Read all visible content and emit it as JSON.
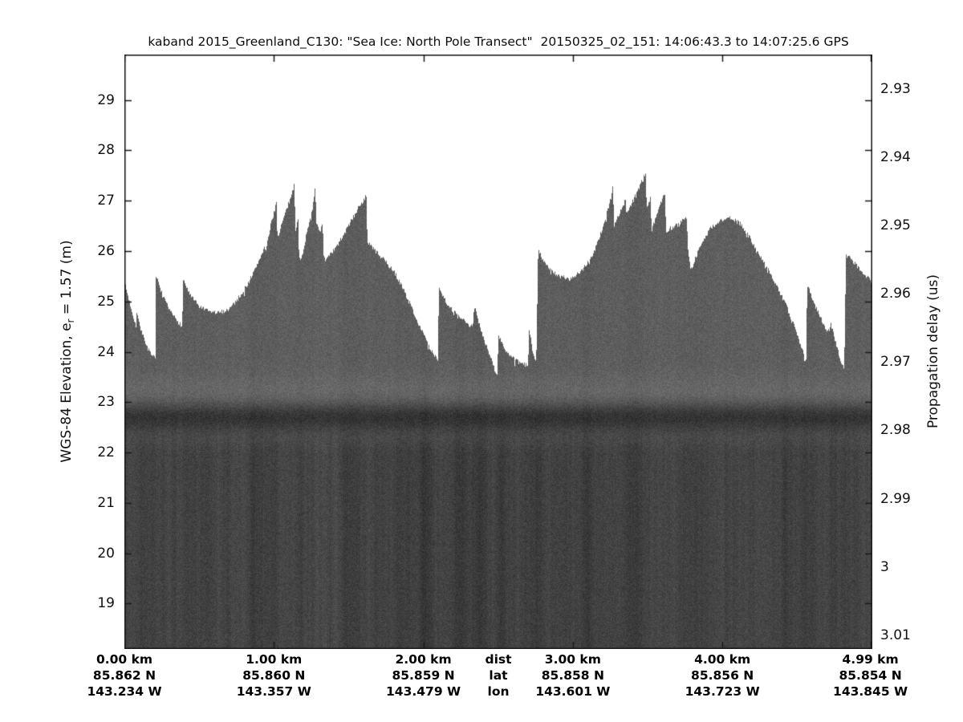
{
  "title": "kaband 2015_Greenland_C130: \"Sea Ice: North Pole Transect\"  20150325_02_151: 14:06:43.3 to 14:07:25.6 GPS",
  "colors": {
    "background": "#ffffff",
    "ink": "#000000",
    "ice_body_gray": "#5e5e5e",
    "bright_zone_gray": "#696969",
    "interface_band_gray": "#303030",
    "deep_gray": "#434343"
  },
  "axes": {
    "left": {
      "label_prefix": "WGS-84 Elevation, e",
      "label_sub": "r",
      "label_suffix": " = 1.57 (m)"
    },
    "right": {
      "label": "Propagation delay (us)"
    },
    "bottom": {
      "legend": {
        "dist": "dist",
        "lat": "lat",
        "lon": "lon"
      }
    }
  },
  "chart_data": {
    "type": "heatmap",
    "title": "kaband 2015_Greenland_C130: \"Sea Ice: North Pole Transect\"  20150325_02_151: 14:06:43.3 to 14:07:25.6 GPS",
    "description": "Ka-band radar altimeter echogram over sea ice; white above the jagged snow/ice surface return, speckled gray echo below, a dark horizontal interface band near 22.7 m elevation, darker noisy returns beneath extending to the bottom of the plot.",
    "ylabel_left": "WGS-84 Elevation, e_r = 1.57 (m)",
    "ylabel_right": "Propagation delay (us)",
    "xlabel_rows": [
      "dist",
      "lat",
      "lon"
    ],
    "x_range_km": [
      0.0,
      5.003
    ],
    "elevation_range_m": [
      18.1,
      29.9
    ],
    "delay_range_us": [
      2.925,
      3.012
    ],
    "elevation_ticks_m": [
      "29",
      "28",
      "27",
      "26",
      "25",
      "24",
      "23",
      "22",
      "21",
      "20",
      "19"
    ],
    "delay_ticks_us": [
      "2.93",
      "2.94",
      "2.95",
      "2.96",
      "2.97",
      "2.98",
      "2.99",
      "3",
      "3.01"
    ],
    "x_ticks": [
      {
        "km": 0.0,
        "dist": "0.00 km",
        "lat": "85.862 N",
        "lon": "143.234 W"
      },
      {
        "km": 1.0,
        "dist": "1.00 km",
        "lat": "85.860 N",
        "lon": "143.357 W"
      },
      {
        "km": 2.0,
        "dist": "2.00 km",
        "lat": "85.859 N",
        "lon": "143.479 W"
      },
      {
        "km": 3.0,
        "dist": "3.00 km",
        "lat": "85.858 N",
        "lon": "143.601 W"
      },
      {
        "km": 4.0,
        "dist": "4.00 km",
        "lat": "85.856 N",
        "lon": "143.723 W"
      },
      {
        "km": 4.99,
        "dist": "4.99 km",
        "lat": "85.854 N",
        "lon": "143.845 W"
      }
    ],
    "surface_profile": [
      [
        0.0,
        25.38
      ],
      [
        0.025,
        25.1
      ],
      [
        0.06,
        24.7
      ],
      [
        0.078,
        24.52
      ],
      [
        0.082,
        24.78
      ],
      [
        0.12,
        24.35
      ],
      [
        0.16,
        24.05
      ],
      [
        0.188,
        23.88
      ],
      [
        0.208,
        23.92
      ],
      [
        0.212,
        25.5
      ],
      [
        0.26,
        25.08
      ],
      [
        0.31,
        24.78
      ],
      [
        0.374,
        24.55
      ],
      [
        0.388,
        24.5
      ],
      [
        0.392,
        25.45
      ],
      [
        0.44,
        25.12
      ],
      [
        0.5,
        24.9
      ],
      [
        0.56,
        24.8
      ],
      [
        0.634,
        24.77
      ],
      [
        0.7,
        24.85
      ],
      [
        0.76,
        25.05
      ],
      [
        0.82,
        25.32
      ],
      [
        0.87,
        25.6
      ],
      [
        0.91,
        25.88
      ],
      [
        0.94,
        26.1
      ],
      [
        0.945,
        25.95
      ],
      [
        0.975,
        26.45
      ],
      [
        1.0,
        26.75
      ],
      [
        1.018,
        26.98
      ],
      [
        1.024,
        26.25
      ],
      [
        1.06,
        26.6
      ],
      [
        1.1,
        26.95
      ],
      [
        1.138,
        27.32
      ],
      [
        1.144,
        26.42
      ],
      [
        1.162,
        26.64
      ],
      [
        1.168,
        25.95
      ],
      [
        1.18,
        25.78
      ],
      [
        1.22,
        26.35
      ],
      [
        1.262,
        26.9
      ],
      [
        1.278,
        27.27
      ],
      [
        1.284,
        26.52
      ],
      [
        1.31,
        26.4
      ],
      [
        1.326,
        26.56
      ],
      [
        1.332,
        25.98
      ],
      [
        1.345,
        25.8
      ],
      [
        1.42,
        26.08
      ],
      [
        1.5,
        26.5
      ],
      [
        1.57,
        26.88
      ],
      [
        1.618,
        27.09
      ],
      [
        1.626,
        26.19
      ],
      [
        1.7,
        25.93
      ],
      [
        1.76,
        25.75
      ],
      [
        1.81,
        25.56
      ],
      [
        1.87,
        25.22
      ],
      [
        1.93,
        24.82
      ],
      [
        1.99,
        24.42
      ],
      [
        2.05,
        24.02
      ],
      [
        2.098,
        23.86
      ],
      [
        2.104,
        25.28
      ],
      [
        2.16,
        24.95
      ],
      [
        2.23,
        24.7
      ],
      [
        2.3,
        24.55
      ],
      [
        2.33,
        24.48
      ],
      [
        2.342,
        24.9
      ],
      [
        2.4,
        24.3
      ],
      [
        2.46,
        23.8
      ],
      [
        2.495,
        23.5
      ],
      [
        2.502,
        24.32
      ],
      [
        2.56,
        23.98
      ],
      [
        2.62,
        23.82
      ],
      [
        2.66,
        23.76
      ],
      [
        2.7,
        23.72
      ],
      [
        2.708,
        24.44
      ],
      [
        2.73,
        24.05
      ],
      [
        2.755,
        23.8
      ],
      [
        2.768,
        26.02
      ],
      [
        2.82,
        25.72
      ],
      [
        2.9,
        25.5
      ],
      [
        2.975,
        25.45
      ],
      [
        3.05,
        25.58
      ],
      [
        3.13,
        25.9
      ],
      [
        3.2,
        26.45
      ],
      [
        3.255,
        27.05
      ],
      [
        3.268,
        27.29
      ],
      [
        3.276,
        26.52
      ],
      [
        3.33,
        26.85
      ],
      [
        3.352,
        27.02
      ],
      [
        3.36,
        26.72
      ],
      [
        3.42,
        27.1
      ],
      [
        3.487,
        27.56
      ],
      [
        3.494,
        26.85
      ],
      [
        3.52,
        27.05
      ],
      [
        3.528,
        26.42
      ],
      [
        3.57,
        26.8
      ],
      [
        3.616,
        27.19
      ],
      [
        3.624,
        26.4
      ],
      [
        3.7,
        26.52
      ],
      [
        3.762,
        26.69
      ],
      [
        3.772,
        25.95
      ],
      [
        3.79,
        25.62
      ],
      [
        3.85,
        26.08
      ],
      [
        3.92,
        26.45
      ],
      [
        4.0,
        26.63
      ],
      [
        4.06,
        26.65
      ],
      [
        4.13,
        26.52
      ],
      [
        4.2,
        26.18
      ],
      [
        4.29,
        25.72
      ],
      [
        4.35,
        25.4
      ],
      [
        4.41,
        25.03
      ],
      [
        4.47,
        24.6
      ],
      [
        4.52,
        24.18
      ],
      [
        4.56,
        23.8
      ],
      [
        4.568,
        25.33
      ],
      [
        4.63,
        24.85
      ],
      [
        4.69,
        24.48
      ],
      [
        4.718,
        24.38
      ],
      [
        4.726,
        24.57
      ],
      [
        4.77,
        24.05
      ],
      [
        4.815,
        23.62
      ],
      [
        4.828,
        25.97
      ],
      [
        4.88,
        25.78
      ],
      [
        4.94,
        25.58
      ],
      [
        5.003,
        25.38
      ]
    ],
    "layers": {
      "ice_body_level": 94,
      "bright_zone": {
        "center_elev_m": 23.15,
        "sigma_m": 0.38,
        "amount": 11
      },
      "dark_interface_band": {
        "center_elev_m": 22.7,
        "sigma_m": 0.3,
        "amount": 45
      },
      "deep_darkening": {
        "start_elev_m": 22.65,
        "end_elev_m": 21.95,
        "amount": 27
      }
    },
    "texture": {
      "noise_amplitude": 13,
      "streak_walk": 5.5,
      "wide_streaks": 16,
      "seed": 7
    },
    "grid": false,
    "legend_position": "none"
  }
}
